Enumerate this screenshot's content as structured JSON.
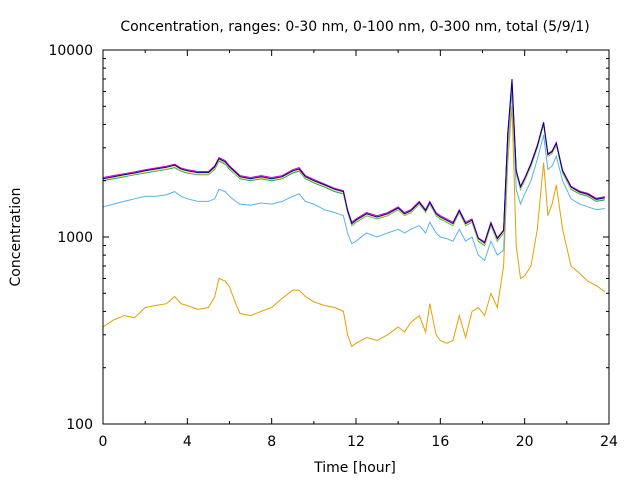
{
  "chart_data": {
    "type": "line",
    "title": "Concentration, ranges: 0-30 nm, 0-100 nm, 0-300 nm, total (5/9/1)",
    "xlabel": "Time [hour]",
    "ylabel": "Concentration",
    "xlim": [
      0,
      24
    ],
    "ylim": [
      100,
      10000
    ],
    "yscale": "log",
    "grid": false,
    "legend": "none",
    "x_ticks": [
      "0",
      "4",
      "8",
      "12",
      "16",
      "20",
      "24"
    ],
    "y_ticks": [
      "100",
      "1000",
      "10000"
    ],
    "series": [
      {
        "color": "#e69f00",
        "x": [
          0,
          0.5,
          1,
          1.5,
          2,
          2.5,
          3,
          3.4,
          3.7,
          4,
          4.5,
          5,
          5.3,
          5.5,
          5.8,
          6.0,
          6.3,
          6.5,
          7,
          7.5,
          8,
          8.5,
          9,
          9.3,
          9.6,
          10,
          10.5,
          11,
          11.4,
          11.6,
          11.8,
          12,
          12.5,
          13,
          13.5,
          14,
          14.3,
          14.6,
          15,
          15.3,
          15.5,
          15.8,
          16,
          16.3,
          16.6,
          16.9,
          17.2,
          17.5,
          17.8,
          18.1,
          18.4,
          18.7,
          19,
          19.2,
          19.4,
          19.6,
          19.8,
          20,
          20.3,
          20.6,
          20.9,
          21.1,
          21.3,
          21.5,
          21.8,
          22.2,
          22.6,
          23,
          23.4,
          23.8
        ],
        "y": [
          330,
          360,
          380,
          370,
          420,
          430,
          440,
          480,
          440,
          430,
          410,
          420,
          480,
          600,
          580,
          540,
          440,
          390,
          380,
          400,
          420,
          470,
          520,
          520,
          480,
          450,
          430,
          420,
          400,
          300,
          260,
          270,
          290,
          280,
          300,
          330,
          310,
          350,
          380,
          310,
          440,
          300,
          280,
          270,
          280,
          380,
          290,
          400,
          420,
          380,
          500,
          420,
          700,
          2500,
          5000,
          900,
          600,
          620,
          700,
          1100,
          2500,
          1300,
          1500,
          1900,
          1100,
          700,
          640,
          580,
          550,
          510
        ]
      },
      {
        "color": "#56b4e9",
        "x": [
          0,
          0.5,
          1,
          1.5,
          2,
          2.5,
          3,
          3.4,
          3.7,
          4,
          4.5,
          5,
          5.3,
          5.5,
          5.8,
          6.0,
          6.3,
          6.5,
          7,
          7.5,
          8,
          8.5,
          9,
          9.3,
          9.6,
          10,
          10.5,
          11,
          11.4,
          11.6,
          11.8,
          12,
          12.5,
          13,
          13.5,
          14,
          14.3,
          14.6,
          15,
          15.3,
          15.5,
          15.8,
          16,
          16.3,
          16.6,
          16.9,
          17.2,
          17.5,
          17.8,
          18.1,
          18.4,
          18.7,
          19,
          19.2,
          19.4,
          19.6,
          19.8,
          20,
          20.3,
          20.6,
          20.9,
          21.1,
          21.3,
          21.5,
          21.8,
          22.2,
          22.6,
          23,
          23.4,
          23.8
        ],
        "y": [
          1450,
          1500,
          1550,
          1600,
          1650,
          1650,
          1680,
          1750,
          1650,
          1600,
          1550,
          1550,
          1600,
          1800,
          1750,
          1650,
          1550,
          1500,
          1480,
          1520,
          1500,
          1550,
          1650,
          1700,
          1550,
          1500,
          1400,
          1350,
          1300,
          1050,
          920,
          950,
          1050,
          1000,
          1050,
          1100,
          1050,
          1100,
          1150,
          1050,
          1200,
          1050,
          1000,
          980,
          950,
          1100,
          950,
          1000,
          800,
          750,
          950,
          800,
          850,
          3000,
          6000,
          1800,
          1500,
          1700,
          2000,
          2600,
          3500,
          2300,
          2400,
          2700,
          2000,
          1600,
          1500,
          1450,
          1400,
          1420
        ]
      },
      {
        "color": "#009e73",
        "x": [
          0,
          0.5,
          1,
          1.5,
          2,
          2.5,
          3,
          3.4,
          3.7,
          4,
          4.5,
          5,
          5.3,
          5.5,
          5.8,
          6.0,
          6.3,
          6.5,
          7,
          7.5,
          8,
          8.5,
          9,
          9.3,
          9.6,
          10,
          10.5,
          11,
          11.4,
          11.6,
          11.8,
          12,
          12.5,
          13,
          13.5,
          14,
          14.3,
          14.6,
          15,
          15.3,
          15.5,
          15.8,
          16,
          16.3,
          16.6,
          16.9,
          17.2,
          17.5,
          17.8,
          18.1,
          18.4,
          18.7,
          19,
          19.2,
          19.4,
          19.6,
          19.8,
          20,
          20.3,
          20.6,
          20.9,
          21.1,
          21.3,
          21.5,
          21.8,
          22.2,
          22.6,
          23,
          23.4,
          23.8
        ],
        "y": [
          2000,
          2050,
          2100,
          2150,
          2200,
          2250,
          2300,
          2350,
          2250,
          2200,
          2150,
          2150,
          2300,
          2550,
          2450,
          2300,
          2150,
          2050,
          2000,
          2050,
          2000,
          2050,
          2200,
          2250,
          2050,
          1950,
          1850,
          1750,
          1700,
          1350,
          1150,
          1200,
          1300,
          1250,
          1300,
          1400,
          1300,
          1350,
          1500,
          1350,
          1500,
          1300,
          1250,
          1200,
          1150,
          1350,
          1150,
          1200,
          950,
          900,
          1150,
          950,
          1050,
          3500,
          6500,
          2200,
          1800,
          2000,
          2400,
          3000,
          4000,
          2700,
          2800,
          3100,
          2200,
          1800,
          1700,
          1650,
          1550,
          1580
        ]
      },
      {
        "color": "#f0e442",
        "x": [
          0,
          0.5,
          1,
          1.5,
          2,
          2.5,
          3,
          3.4,
          3.7,
          4,
          4.5,
          5,
          5.3,
          5.5,
          5.8,
          6.0,
          6.3,
          6.5,
          7,
          7.5,
          8,
          8.5,
          9,
          9.3,
          9.6,
          10,
          10.5,
          11,
          11.4,
          11.6,
          11.8,
          12,
          12.5,
          13,
          13.5,
          14,
          14.3,
          14.6,
          15,
          15.3,
          15.5,
          15.8,
          16,
          16.3,
          16.6,
          16.9,
          17.2,
          17.5,
          17.8,
          18.1,
          18.4,
          18.7,
          19,
          19.2,
          19.4,
          19.6,
          19.8,
          20,
          20.3,
          20.6,
          20.9,
          21.1,
          21.3,
          21.5,
          21.8,
          22.2,
          22.6,
          23,
          23.4,
          23.8
        ],
        "y": [
          2020,
          2070,
          2120,
          2170,
          2220,
          2270,
          2320,
          2380,
          2270,
          2220,
          2170,
          2170,
          2330,
          2580,
          2480,
          2330,
          2170,
          2070,
          2020,
          2070,
          2020,
          2070,
          2230,
          2280,
          2070,
          1970,
          1870,
          1770,
          1720,
          1360,
          1160,
          1210,
          1310,
          1260,
          1310,
          1410,
          1310,
          1360,
          1510,
          1360,
          1510,
          1310,
          1260,
          1210,
          1160,
          1360,
          1160,
          1210,
          960,
          910,
          1160,
          960,
          1060,
          3550,
          6600,
          2220,
          1820,
          2020,
          2420,
          3030,
          4050,
          2720,
          2820,
          3130,
          2220,
          1820,
          1720,
          1670,
          1570,
          1600
        ]
      },
      {
        "color": "#cc00cc",
        "x": [
          0,
          0.5,
          1,
          1.5,
          2,
          2.5,
          3,
          3.4,
          3.7,
          4,
          4.5,
          5,
          5.3,
          5.5,
          5.8,
          6.0,
          6.3,
          6.5,
          7,
          7.5,
          8,
          8.5,
          9,
          9.3,
          9.6,
          10,
          10.5,
          11,
          11.4,
          11.6,
          11.8,
          12,
          12.5,
          13,
          13.5,
          14,
          14.3,
          14.6,
          15,
          15.3,
          15.5,
          15.8,
          16,
          16.3,
          16.6,
          16.9,
          17.2,
          17.5,
          17.8,
          18.1,
          18.4,
          18.7,
          19,
          19.2,
          19.4,
          19.6,
          19.8,
          20,
          20.3,
          20.6,
          20.9,
          21.1,
          21.3,
          21.5,
          21.8,
          22.2,
          22.6,
          23,
          23.4,
          23.8
        ],
        "y": [
          2080,
          2130,
          2180,
          2230,
          2290,
          2340,
          2390,
          2450,
          2340,
          2290,
          2240,
          2240,
          2400,
          2660,
          2560,
          2400,
          2240,
          2130,
          2080,
          2130,
          2080,
          2130,
          2290,
          2350,
          2130,
          2030,
          1920,
          1820,
          1770,
          1400,
          1200,
          1250,
          1350,
          1300,
          1350,
          1450,
          1350,
          1400,
          1550,
          1400,
          1550,
          1350,
          1300,
          1250,
          1200,
          1400,
          1200,
          1250,
          990,
          940,
          1200,
          990,
          1090,
          3600,
          6700,
          2280,
          1870,
          2070,
          2480,
          3100,
          4120,
          2790,
          2890,
          3200,
          2280,
          1870,
          1760,
          1710,
          1610,
          1640
        ]
      },
      {
        "color": "#000080",
        "x": [
          0,
          0.5,
          1,
          1.5,
          2,
          2.5,
          3,
          3.4,
          3.7,
          4,
          4.5,
          5,
          5.3,
          5.5,
          5.8,
          6.0,
          6.3,
          6.5,
          7,
          7.5,
          8,
          8.5,
          9,
          9.3,
          9.6,
          10,
          10.5,
          11,
          11.4,
          11.6,
          11.8,
          12,
          12.5,
          13,
          13.5,
          14,
          14.3,
          14.6,
          15,
          15.3,
          15.5,
          15.8,
          16,
          16.3,
          16.6,
          16.9,
          17.2,
          17.5,
          17.8,
          18.1,
          18.4,
          18.7,
          19,
          19.2,
          19.4,
          19.6,
          19.8,
          20,
          20.3,
          20.6,
          20.9,
          21.1,
          21.3,
          21.5,
          21.8,
          22.2,
          22.6,
          23,
          23.4,
          23.8
        ],
        "y": [
          2050,
          2100,
          2150,
          2200,
          2260,
          2310,
          2360,
          2420,
          2310,
          2260,
          2210,
          2210,
          2370,
          2620,
          2520,
          2370,
          2210,
          2100,
          2050,
          2100,
          2050,
          2100,
          2260,
          2310,
          2100,
          2000,
          1900,
          1800,
          1750,
          1380,
          1180,
          1230,
          1330,
          1280,
          1330,
          1430,
          1330,
          1380,
          1530,
          1380,
          1530,
          1330,
          1280,
          1230,
          1180,
          1380,
          1180,
          1230,
          980,
          930,
          1180,
          980,
          1080,
          3580,
          7000,
          2250,
          1850,
          2050,
          2450,
          3060,
          4080,
          2760,
          2860,
          3170,
          2250,
          1850,
          1740,
          1690,
          1590,
          1620
        ]
      }
    ]
  }
}
